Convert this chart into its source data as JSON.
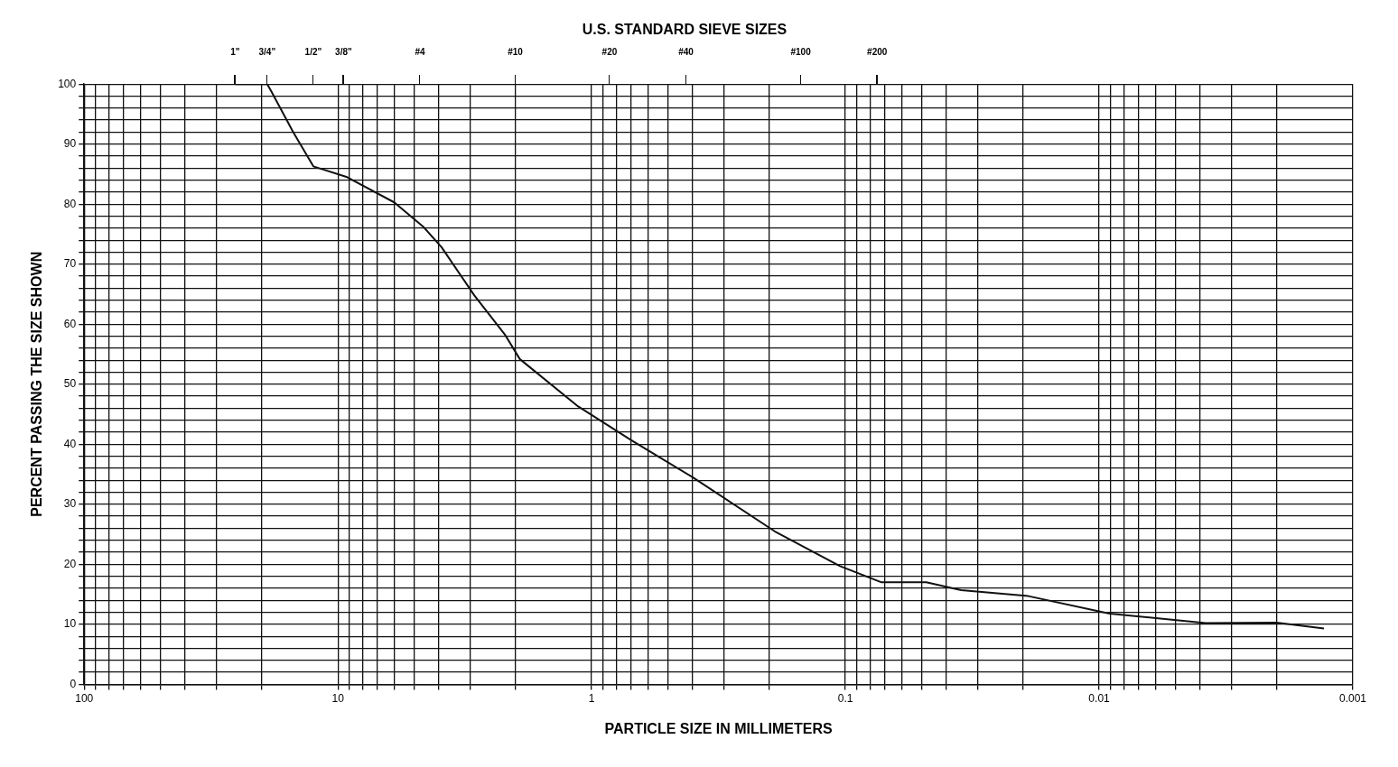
{
  "chart_data": {
    "type": "line",
    "xlabel": "PARTICLE SIZE IN MILLIMETERS",
    "ylabel": "PERCENT PASSING THE SIZE SHOWN",
    "title": "U.S. STANDARD SIEVE SIZES",
    "log": "x",
    "grid": true,
    "legend": false,
    "marker": "none",
    "line_style": "solid",
    "xlim": [
      100,
      0.001
    ],
    "xticks": [
      100,
      {
        "value": 90,
        "label": null
      },
      {
        "value": 80,
        "label": null
      },
      {
        "value": 70,
        "label": null
      },
      {
        "value": 60,
        "label": null
      },
      {
        "value": 50,
        "label": null
      },
      {
        "value": 40,
        "label": null
      },
      {
        "value": 30,
        "label": null
      },
      {
        "value": 20,
        "label": null
      },
      10,
      {
        "value": 9,
        "label": null
      },
      {
        "value": 8,
        "label": null
      },
      {
        "value": 7,
        "label": null
      },
      {
        "value": 6,
        "label": null
      },
      {
        "value": 5,
        "label": null
      },
      {
        "value": 4,
        "label": null
      },
      {
        "value": 3,
        "label": null
      },
      {
        "value": 2,
        "label": null
      },
      1,
      {
        "value": 0.9,
        "label": null
      },
      {
        "value": 0.8,
        "label": null
      },
      {
        "value": 0.7,
        "label": null
      },
      {
        "value": 0.6,
        "label": null
      },
      {
        "value": 0.5,
        "label": null
      },
      {
        "value": 0.4,
        "label": null
      },
      {
        "value": 0.3,
        "label": null
      },
      {
        "value": 0.2,
        "label": null
      },
      0.1,
      {
        "value": 0.09,
        "label": null
      },
      {
        "value": 0.08,
        "label": null
      },
      {
        "value": 0.07,
        "label": null
      },
      {
        "value": 0.06,
        "label": null
      },
      {
        "value": 0.05,
        "label": null
      },
      {
        "value": 0.04,
        "label": null
      },
      {
        "value": 0.03,
        "label": null
      },
      {
        "value": 0.02,
        "label": null
      },
      0.01,
      {
        "value": 0.009,
        "label": null
      },
      {
        "value": 0.008,
        "label": null
      },
      {
        "value": 0.007,
        "label": null
      },
      {
        "value": 0.006,
        "label": null
      },
      {
        "value": 0.005,
        "label": null
      },
      {
        "value": 0.004,
        "label": null
      },
      {
        "value": 0.003,
        "label": null
      },
      {
        "value": 0.002,
        "label": null
      },
      0.001
    ],
    "annotations": [
      "1\"",
      "3/4\"",
      "1/2\"",
      "3/8\"",
      "#4",
      "#10",
      "#20",
      "#40",
      "#100",
      "#200"
    ],
    "ylim": [
      0,
      100
    ],
    "yticks": [
      0,
      {
        "value": 2,
        "label": null
      },
      {
        "value": 4,
        "label": null
      },
      {
        "value": 6,
        "label": null
      },
      {
        "value": 8,
        "label": null
      },
      10,
      {
        "value": 12,
        "label": null
      },
      {
        "value": 14,
        "label": null
      },
      {
        "value": 16,
        "label": null
      },
      {
        "value": 18,
        "label": null
      },
      20,
      {
        "value": 22,
        "label": null
      },
      {
        "value": 24,
        "label": null
      },
      {
        "value": 26,
        "label": null
      },
      {
        "value": 28,
        "label": null
      },
      30,
      {
        "value": 32,
        "label": null
      },
      {
        "value": 34,
        "label": null
      },
      {
        "value": 36,
        "label": null
      },
      {
        "value": 38,
        "label": null
      },
      40,
      {
        "value": 42,
        "label": null
      },
      {
        "value": 44,
        "label": null
      },
      {
        "value": 46,
        "label": null
      },
      {
        "value": 48,
        "label": null
      },
      50,
      {
        "value": 52,
        "label": null
      },
      {
        "value": 54,
        "label": null
      },
      {
        "value": 56,
        "label": null
      },
      {
        "value": 58,
        "label": null
      },
      60,
      {
        "value": 62,
        "label": null
      },
      {
        "value": 64,
        "label": null
      },
      {
        "value": 66,
        "label": null
      },
      {
        "value": 68,
        "label": null
      },
      70,
      {
        "value": 72,
        "label": null
      },
      {
        "value": 74,
        "label": null
      },
      {
        "value": 76,
        "label": null
      },
      {
        "value": 78,
        "label": null
      },
      80,
      {
        "value": 82,
        "label": null
      },
      {
        "value": 84,
        "label": null
      },
      {
        "value": 86,
        "label": null
      },
      {
        "value": 88,
        "label": null
      },
      90,
      {
        "value": 92,
        "label": null
      },
      {
        "value": 94,
        "label": null
      },
      {
        "value": 96,
        "label": null
      },
      {
        "value": 98,
        "label": null
      },
      100
    ],
    "series": [
      {
        "color": "#111111",
        "x": [
          25.4,
          19,
          18.3,
          15,
          12.5,
          9.2,
          6.0,
          4.6,
          3.9,
          2.9,
          2.2,
          1.92,
          1.13,
          0.7,
          0.4,
          0.19,
          0.105,
          0.072,
          0.048,
          0.035,
          0.019,
          0.0091,
          0.0038,
          0.002,
          0.0013
        ],
        "values": [
          100,
          100,
          98.8,
          92,
          86.3,
          84.5,
          80.3,
          76.2,
          72.8,
          64.8,
          58.3,
          54.2,
          46.3,
          40.7,
          34.5,
          25.5,
          19.7,
          17,
          17,
          15.7,
          14.7,
          11.8,
          10.2,
          10.3,
          9.3
        ]
      }
    ]
  }
}
